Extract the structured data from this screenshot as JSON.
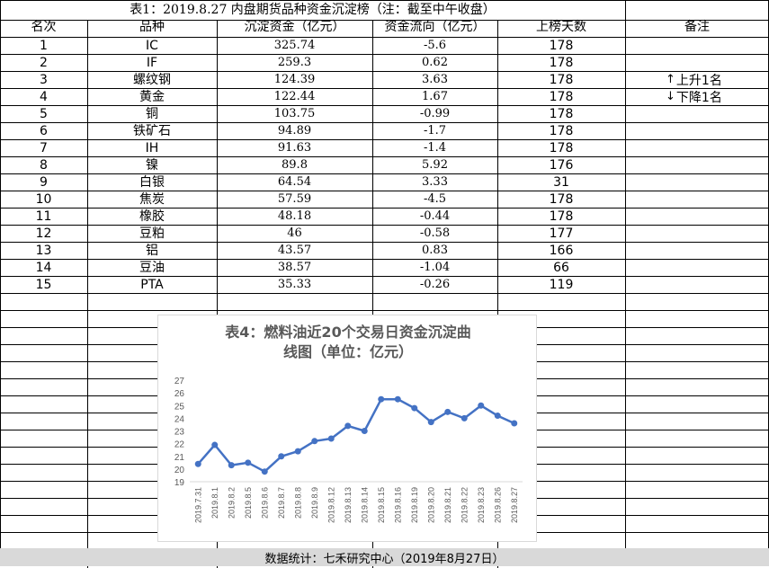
{
  "table": {
    "title": "表1：2019.8.27 内盘期货品种资金沉淀榜（注：截至中午收盘）",
    "headers": [
      "名次",
      "品种",
      "沉淀资金（亿元）",
      "资金流向（亿元）",
      "上榜天数",
      "备注"
    ],
    "rows": [
      [
        "1",
        "IC",
        "325.74",
        "-5.6",
        "178"
      ],
      [
        "2",
        "IF",
        "259.3",
        "0.62",
        "178"
      ],
      [
        "3",
        "螺纹钢",
        "124.39",
        "3.63",
        "178"
      ],
      [
        "4",
        "黄金",
        "122.44",
        "1.67",
        "178"
      ],
      [
        "5",
        "铜",
        "103.75",
        "-0.99",
        "178"
      ],
      [
        "6",
        "铁矿石",
        "94.89",
        "-1.7",
        "178"
      ],
      [
        "7",
        "IH",
        "91.63",
        "-1.4",
        "178"
      ],
      [
        "8",
        "镍",
        "89.8",
        "5.92",
        "176"
      ],
      [
        "9",
        "白银",
        "64.54",
        "3.33",
        "31"
      ],
      [
        "10",
        "焦炭",
        "57.59",
        "-4.5",
        "178"
      ],
      [
        "11",
        "橡胶",
        "48.18",
        "-0.44",
        "178"
      ],
      [
        "12",
        "豆粕",
        "46",
        "-0.58",
        "177"
      ],
      [
        "13",
        "铝",
        "43.57",
        "0.83",
        "166"
      ],
      [
        "14",
        "豆油",
        "38.57",
        "-1.04",
        "66"
      ],
      [
        "15",
        "PTA",
        "35.33",
        "-0.26",
        "119"
      ]
    ],
    "notes": {
      "up_text": "上升1名",
      "down_text": "下降1名",
      "up_arrow": "↑",
      "down_arrow": "↓"
    }
  },
  "footer": "数据统计：七禾研究中心（2019年8月27日）",
  "chart_data": {
    "type": "line",
    "title": "表4：燃料油近20个交易日资金沉淀曲线图（单位：亿元）",
    "title_lines": [
      "表4：燃料油近20个交易日资金沉淀曲",
      "线图（单位：亿元）"
    ],
    "categories": [
      "2019.7.31",
      "2019.8.1",
      "2019.8.2",
      "2019.8.5",
      "2019.8.6",
      "2019.8.7",
      "2019.8.8",
      "2019.8.9",
      "2019.8.12",
      "2019.8.13",
      "2019.8.14",
      "2019.8.15",
      "2019.8.16",
      "2019.8.19",
      "2019.8.20",
      "2019.8.21",
      "2019.8.22",
      "2019.8.23",
      "2019.8.26",
      "2019.8.27"
    ],
    "values": [
      20.4,
      21.9,
      20.3,
      20.5,
      19.8,
      21.0,
      21.4,
      22.2,
      22.4,
      23.4,
      23.0,
      25.5,
      25.5,
      24.8,
      23.7,
      24.5,
      24.0,
      25.0,
      24.2,
      23.6
    ],
    "ylim": [
      19,
      27
    ],
    "yticks": [
      19,
      20,
      21,
      22,
      23,
      24,
      25,
      26,
      27
    ],
    "grid": false,
    "line_color": "#4472c4"
  }
}
